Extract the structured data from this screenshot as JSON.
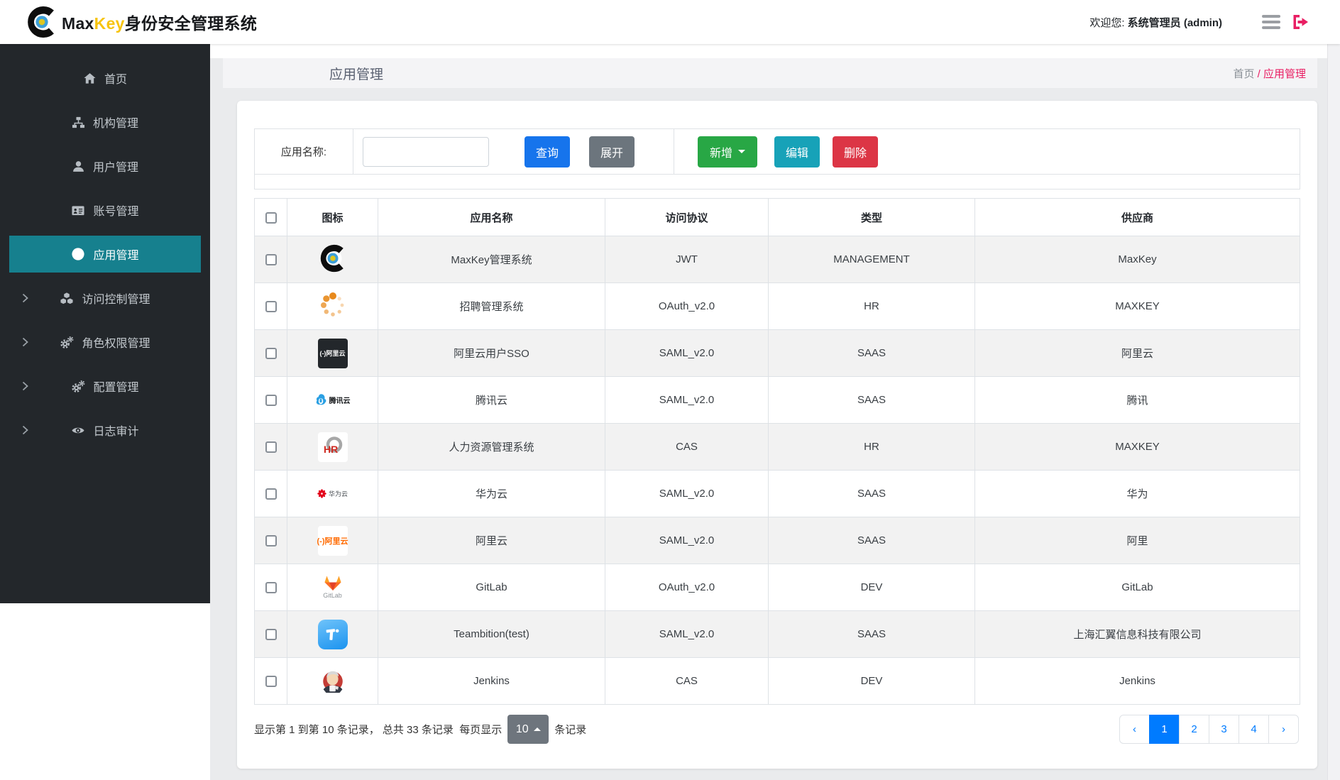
{
  "topbar": {
    "brand_max": "Max",
    "brand_key": "Key",
    "brand_suffix": "身份安全管理系统",
    "welcome_prefix": "欢迎您:",
    "welcome_user": "系统管理员 (admin)"
  },
  "sidebar": {
    "items": [
      {
        "key": "home",
        "label": "首页",
        "icon": "home-icon",
        "active": false,
        "expandable": false
      },
      {
        "key": "org",
        "label": "机构管理",
        "icon": "sitemap-icon",
        "active": false,
        "expandable": false
      },
      {
        "key": "user",
        "label": "用户管理",
        "icon": "user-icon",
        "active": false,
        "expandable": false
      },
      {
        "key": "account",
        "label": "账号管理",
        "icon": "id-card-icon",
        "active": false,
        "expandable": false
      },
      {
        "key": "app",
        "label": "应用管理",
        "icon": "globe-icon",
        "active": true,
        "expandable": false
      },
      {
        "key": "access",
        "label": "访问控制管理",
        "icon": "cubes-icon",
        "active": false,
        "expandable": true
      },
      {
        "key": "role",
        "label": "角色权限管理",
        "icon": "gears-icon",
        "active": false,
        "expandable": true
      },
      {
        "key": "config",
        "label": "配置管理",
        "icon": "gears-icon",
        "active": false,
        "expandable": true
      },
      {
        "key": "log",
        "label": "日志审计",
        "icon": "eye-icon",
        "active": false,
        "expandable": true
      }
    ]
  },
  "page": {
    "title": "应用管理",
    "breadcrumb": {
      "home": "首页",
      "separator": "/",
      "current": "应用管理"
    }
  },
  "toolbar": {
    "search_label": "应用名称:",
    "search_value": "",
    "query_label": "查询",
    "expand_label": "展开",
    "add_label": "新增",
    "edit_label": "编辑",
    "delete_label": "删除"
  },
  "table": {
    "columns": [
      "图标",
      "应用名称",
      "访问协议",
      "类型",
      "供应商"
    ],
    "rows": [
      {
        "icon": "maxkey-logo",
        "name": "MaxKey管理系统",
        "protocol": "JWT",
        "type": "MANAGEMENT",
        "vendor": "MaxKey"
      },
      {
        "icon": "loading-dots",
        "name": "招聘管理系统",
        "protocol": "OAuth_v2.0",
        "type": "HR",
        "vendor": "MAXKEY"
      },
      {
        "icon": "aliyun-dark",
        "name": "阿里云用户SSO",
        "protocol": "SAML_v2.0",
        "type": "SAAS",
        "vendor": "阿里云"
      },
      {
        "icon": "tencent-cloud",
        "name": "腾讯云",
        "protocol": "SAML_v2.0",
        "type": "SAAS",
        "vendor": "腾讯"
      },
      {
        "icon": "hr-system",
        "name": "人力资源管理系统",
        "protocol": "CAS",
        "type": "HR",
        "vendor": "MAXKEY"
      },
      {
        "icon": "huawei-cloud",
        "name": "华为云",
        "protocol": "SAML_v2.0",
        "type": "SAAS",
        "vendor": "华为"
      },
      {
        "icon": "aliyun-light",
        "name": "阿里云",
        "protocol": "SAML_v2.0",
        "type": "SAAS",
        "vendor": "阿里"
      },
      {
        "icon": "gitlab",
        "name": "GitLab",
        "protocol": "OAuth_v2.0",
        "type": "DEV",
        "vendor": "GitLab"
      },
      {
        "icon": "teambition",
        "name": "Teambition(test)",
        "protocol": "SAML_v2.0",
        "type": "SAAS",
        "vendor": "上海汇翼信息科技有限公司"
      },
      {
        "icon": "jenkins",
        "name": "Jenkins",
        "protocol": "CAS",
        "type": "DEV",
        "vendor": "Jenkins"
      }
    ]
  },
  "pagination": {
    "records_summary": "显示第 1 到第 10 条记录， 总共 33 条记录",
    "per_page_prefix": "每页显示",
    "page_size": "10",
    "per_page_suffix": "条记录",
    "prev": "‹",
    "next": "›",
    "pages": [
      "1",
      "2",
      "3",
      "4"
    ],
    "active_page": "1"
  },
  "colors": {
    "sidebar_bg": "#23272b",
    "sidebar_active": "#16808e",
    "brand_yellow": "#f7c40e",
    "breadcrumb_pink": "#e91e63",
    "query_blue": "#1674ec",
    "add_green": "#28a745",
    "edit_teal": "#17a2b8",
    "delete_red": "#dc3545",
    "secondary_gray": "#6c757d",
    "pagination_blue": "#007bff"
  }
}
